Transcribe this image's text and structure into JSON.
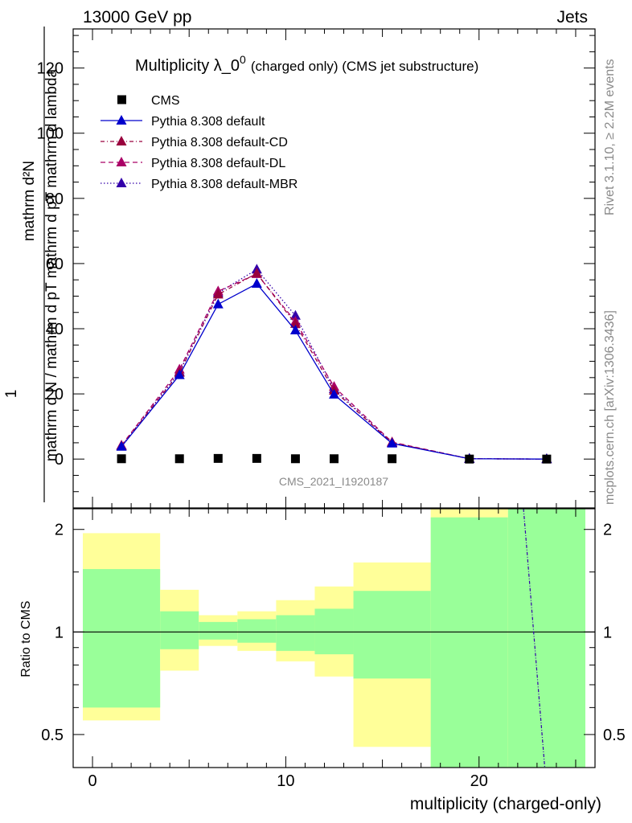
{
  "header": {
    "left": "13000 GeV pp",
    "right": "Jets"
  },
  "side_text": {
    "rivet": "Rivet 3.1.10, ≥ 2.2M events",
    "mcplots": "mcplots.cern.ch [arXiv:1306.3436]"
  },
  "watermark": "CMS_2021_I1920187",
  "colors": {
    "data": "#000000",
    "default": "#0000cc",
    "cd": "#99003d",
    "dl": "#aa0066",
    "mbr": "#3300aa",
    "band_inner": "#99ff99",
    "band_outer": "#ffff99"
  },
  "chart_data": [
    {
      "type": "line",
      "title": "Multiplicity λ_0⁰ (charged only) (CMS jet substructure)",
      "title_main": "Multiplicity λ_0",
      "title_sup": "0",
      "title_sub": "(charged only) (CMS jet substructure)",
      "ylabel_num": "mathrm d²N",
      "ylabel_den": "mathrm d N / mathrm d pT mathrm d pT mathrm d lambda",
      "ylabel_one": "1",
      "xlabel": "",
      "xlim": [
        -1,
        26
      ],
      "ylim": [
        -15,
        132
      ],
      "yticks": [
        0,
        20,
        40,
        60,
        80,
        100,
        120
      ],
      "legend_position": "top-left",
      "x": [
        1.5,
        4.5,
        6.5,
        8.5,
        10.5,
        12.5,
        15.5,
        19.5,
        23.5
      ],
      "series": [
        {
          "name": "CMS",
          "style": "data",
          "values": [
            0.1,
            0.1,
            0.2,
            0.2,
            0.1,
            0.1,
            0.1,
            0.0,
            0.0
          ]
        },
        {
          "name": "Pythia 8.308 default",
          "style": "solid",
          "values": [
            3.8,
            25.8,
            47.5,
            53.8,
            39.5,
            19.8,
            4.8,
            0.1,
            0.0
          ]
        },
        {
          "name": "Pythia 8.308 default-CD",
          "style": "dashdot",
          "values": [
            4.0,
            26.5,
            50.5,
            57.0,
            41.5,
            21.0,
            5.0,
            0.1,
            0.0
          ]
        },
        {
          "name": "Pythia 8.308 default-DL",
          "style": "dashed",
          "values": [
            4.2,
            27.5,
            51.5,
            56.8,
            42.2,
            22.2,
            5.2,
            0.1,
            0.0
          ]
        },
        {
          "name": "Pythia 8.308 default-MBR",
          "style": "dotted",
          "values": [
            4.0,
            26.8,
            51.0,
            58.2,
            44.0,
            21.5,
            5.0,
            0.1,
            0.0
          ]
        }
      ]
    },
    {
      "type": "area",
      "title": "",
      "xlabel": "multiplicity (charged-only)",
      "ylabel": "Ratio to CMS",
      "xlim": [
        -1,
        26
      ],
      "ylim": [
        0.4,
        2.3
      ],
      "yscale": "log",
      "yticks": [
        0.5,
        1,
        2
      ],
      "xticks": [
        0,
        10,
        20
      ],
      "bins": [
        [
          -0.5,
          3.5
        ],
        [
          3.5,
          5.5
        ],
        [
          5.5,
          7.5
        ],
        [
          7.5,
          9.5
        ],
        [
          9.5,
          11.5
        ],
        [
          11.5,
          13.5
        ],
        [
          13.5,
          17.5
        ],
        [
          17.5,
          21.5
        ],
        [
          21.5,
          25.5
        ]
      ],
      "inner_band": [
        [
          0.6,
          1.53
        ],
        [
          0.89,
          1.15
        ],
        [
          0.95,
          1.07
        ],
        [
          0.93,
          1.09
        ],
        [
          0.88,
          1.12
        ],
        [
          0.86,
          1.17
        ],
        [
          0.73,
          1.32
        ],
        [
          0.4,
          2.17
        ],
        [
          0.4,
          2.3
        ]
      ],
      "outer_band": [
        [
          0.55,
          1.95
        ],
        [
          0.77,
          1.33
        ],
        [
          0.91,
          1.12
        ],
        [
          0.88,
          1.15
        ],
        [
          0.82,
          1.24
        ],
        [
          0.74,
          1.36
        ],
        [
          0.46,
          1.6
        ],
        [
          0.4,
          2.3
        ],
        [
          0.4,
          2.3
        ]
      ],
      "mbr_line": [
        [
          22.3,
          2.3
        ],
        [
          23.4,
          0.4
        ]
      ]
    }
  ]
}
